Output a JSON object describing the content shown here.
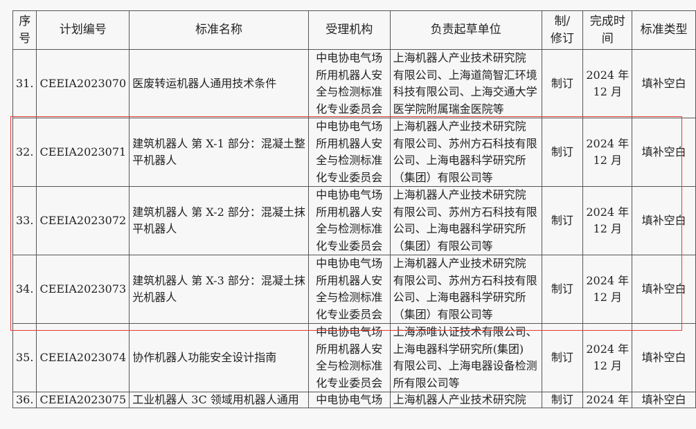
{
  "highlight_color": "#e53935",
  "headers": [
    [
      "序",
      "号"
    ],
    [
      "计划编号"
    ],
    [
      "标准名称"
    ],
    [
      "受理机构"
    ],
    [
      "负责起草单位"
    ],
    [
      "制/",
      "修订"
    ],
    [
      "完成时",
      "间"
    ],
    [
      "标准类型"
    ]
  ],
  "rows": [
    {
      "no": "31.",
      "code": "CEEIA2023070",
      "name": [
        "医废转运机器人通用技术条件"
      ],
      "org": [
        "中电协电气场",
        "所用机器人安",
        "全与检测标准",
        "化专业委员会"
      ],
      "drafter": [
        "上海机器人产业技术研究院",
        "有限公司、上海道简智汇环境",
        "科技有限公司、上海交通大学",
        "医学院附属瑞金医院等"
      ],
      "type": "制订",
      "time": [
        "2024 年",
        "12 月"
      ],
      "category": "填补空白"
    },
    {
      "no": "32.",
      "code": "CEEIA2023071",
      "name": [
        "建筑机器人 第 X-1 部分：混凝土整",
        "平机器人"
      ],
      "org": [
        "中电协电气场",
        "所用机器人安",
        "全与检测标准",
        "化专业委员会"
      ],
      "drafter": [
        "上海机器人产业技术研究院",
        "有限公司、苏州方石科技有限",
        "公司、上海电器科学研究所",
        "（集团）有限公司等"
      ],
      "type": "制订",
      "time": [
        "2024 年",
        "12 月"
      ],
      "category": "填补空白"
    },
    {
      "no": "33.",
      "code": "CEEIA2023072",
      "name": [
        "建筑机器人 第 X-2 部分：混凝土抹",
        "平机器人"
      ],
      "org": [
        "中电协电气场",
        "所用机器人安",
        "全与检测标准",
        "化专业委员会"
      ],
      "drafter": [
        "上海机器人产业技术研究院",
        "有限公司、苏州方石科技有限",
        "公司、上海电器科学研究所",
        "（集团）有限公司等"
      ],
      "type": "制订",
      "time": [
        "2024 年",
        "12 月"
      ],
      "category": "填补空白"
    },
    {
      "no": "34.",
      "code": "CEEIA2023073",
      "name": [
        "建筑机器人 第 X-3 部分：混凝土抹",
        "光机器人"
      ],
      "org": [
        "中电协电气场",
        "所用机器人安",
        "全与检测标准",
        "化专业委员会"
      ],
      "drafter": [
        "上海机器人产业技术研究院",
        "有限公司、苏州方石科技有限",
        "公司、上海电器科学研究所",
        "（集团）有限公司等"
      ],
      "type": "制订",
      "time": [
        "2024 年",
        "12 月"
      ],
      "category": "填补空白"
    },
    {
      "no": "35.",
      "code": "CEEIA2023074",
      "name": [
        "协作机器人功能安全设计指南"
      ],
      "org": [
        "中电协电气场",
        "所用机器人安",
        "全与检测标准",
        "化专业委员会"
      ],
      "drafter": [
        "上海添唯认证技术有限公司、",
        "上海电器科学研究所(集团)",
        "有限公司、上海电器设备检测",
        "所有限公司等"
      ],
      "type": "制订",
      "time": [
        "2024 年",
        "12 月"
      ],
      "category": "填补空白"
    },
    {
      "no": "36.",
      "code": "CEEIA2023075",
      "name": [
        "工业机器人 3C 领域用机器人通用"
      ],
      "org": [
        "中电协电气场"
      ],
      "drafter": [
        "上海机器人产业技术研究院"
      ],
      "type": "制订",
      "time": [
        "2024 年"
      ],
      "category": "填补空白"
    }
  ]
}
